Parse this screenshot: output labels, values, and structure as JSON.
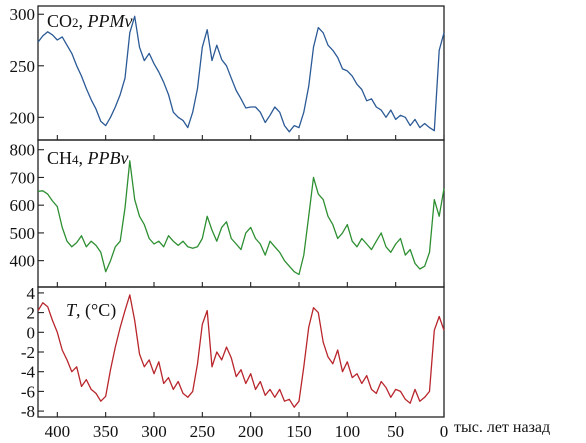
{
  "chart_data": [
    {
      "type": "line",
      "title_main": "CO",
      "title_sub": "2",
      "title_sep": ", ",
      "title_unit": "PPMv",
      "color": "#2b5a96",
      "xlim": [
        420,
        0
      ],
      "ylim": [
        178,
        308
      ],
      "yticks": [
        300,
        250,
        200
      ],
      "x": [
        420,
        415,
        410,
        405,
        400,
        395,
        390,
        385,
        380,
        375,
        370,
        365,
        360,
        355,
        350,
        345,
        340,
        335,
        330,
        325,
        320,
        315,
        310,
        305,
        300,
        295,
        290,
        285,
        280,
        275,
        270,
        265,
        260,
        255,
        250,
        245,
        240,
        235,
        230,
        225,
        220,
        215,
        210,
        205,
        200,
        195,
        190,
        185,
        180,
        175,
        170,
        165,
        160,
        155,
        150,
        145,
        140,
        135,
        130,
        125,
        120,
        115,
        110,
        105,
        100,
        95,
        90,
        85,
        80,
        75,
        70,
        65,
        60,
        55,
        50,
        45,
        40,
        35,
        30,
        25,
        20,
        15,
        10,
        5,
        0
      ],
      "y": [
        273,
        279,
        283,
        280,
        275,
        278,
        270,
        262,
        250,
        240,
        228,
        217,
        208,
        196,
        192,
        200,
        210,
        222,
        238,
        282,
        298,
        268,
        255,
        262,
        252,
        244,
        234,
        222,
        205,
        200,
        197,
        190,
        205,
        228,
        268,
        285,
        255,
        270,
        256,
        250,
        238,
        226,
        218,
        209,
        210,
        210,
        205,
        195,
        202,
        210,
        205,
        192,
        186,
        192,
        190,
        205,
        230,
        268,
        287,
        282,
        270,
        265,
        258,
        247,
        245,
        240,
        232,
        227,
        216,
        218,
        210,
        207,
        200,
        207,
        198,
        202,
        200,
        192,
        198,
        190,
        194,
        190,
        187,
        265,
        282
      ]
    },
    {
      "type": "line",
      "title_main": "CH",
      "title_sub": "4",
      "title_sep": ", ",
      "title_unit": "PPBv",
      "color": "#2e8f32",
      "xlim": [
        420,
        0
      ],
      "ylim": [
        305,
        835
      ],
      "yticks": [
        800,
        700,
        600,
        500,
        400
      ],
      "x": [
        420,
        415,
        410,
        405,
        400,
        395,
        390,
        385,
        380,
        375,
        370,
        365,
        360,
        355,
        350,
        345,
        340,
        335,
        330,
        325,
        320,
        315,
        310,
        305,
        300,
        295,
        290,
        285,
        280,
        275,
        270,
        265,
        260,
        255,
        250,
        245,
        240,
        235,
        230,
        225,
        220,
        215,
        210,
        205,
        200,
        195,
        190,
        185,
        180,
        175,
        170,
        165,
        160,
        155,
        150,
        145,
        140,
        135,
        130,
        125,
        120,
        115,
        110,
        105,
        100,
        95,
        90,
        85,
        80,
        75,
        70,
        65,
        60,
        55,
        50,
        45,
        40,
        35,
        30,
        25,
        20,
        15,
        10,
        5,
        0
      ],
      "y": [
        650,
        652,
        640,
        615,
        595,
        520,
        470,
        450,
        465,
        490,
        450,
        470,
        455,
        430,
        360,
        400,
        450,
        470,
        590,
        760,
        620,
        560,
        530,
        480,
        460,
        470,
        450,
        490,
        470,
        455,
        470,
        450,
        445,
        450,
        480,
        560,
        510,
        470,
        520,
        540,
        480,
        460,
        440,
        500,
        520,
        480,
        460,
        420,
        470,
        450,
        430,
        400,
        380,
        360,
        350,
        420,
        560,
        700,
        640,
        620,
        560,
        530,
        480,
        500,
        530,
        470,
        450,
        480,
        460,
        440,
        470,
        500,
        450,
        430,
        460,
        480,
        420,
        440,
        390,
        370,
        380,
        430,
        620,
        560,
        660
      ]
    },
    {
      "type": "line",
      "title_main": "T",
      "title_sep": ", ",
      "title_unit": "(°C)",
      "color": "#b8262c",
      "xlim": [
        420,
        0
      ],
      "ylim": [
        -8.6,
        4.6
      ],
      "yticks": [
        4,
        2,
        0,
        -2,
        -4,
        -6,
        -8
      ],
      "x": [
        420,
        415,
        410,
        405,
        400,
        395,
        390,
        385,
        380,
        375,
        370,
        365,
        360,
        355,
        350,
        345,
        340,
        335,
        330,
        325,
        320,
        315,
        310,
        305,
        300,
        295,
        290,
        285,
        280,
        275,
        270,
        265,
        260,
        255,
        250,
        245,
        240,
        235,
        230,
        225,
        220,
        215,
        210,
        205,
        200,
        195,
        190,
        185,
        180,
        175,
        170,
        165,
        160,
        155,
        150,
        145,
        140,
        135,
        130,
        125,
        120,
        115,
        110,
        105,
        100,
        95,
        90,
        85,
        80,
        75,
        70,
        65,
        60,
        55,
        50,
        45,
        40,
        35,
        30,
        25,
        20,
        15,
        10,
        5,
        0
      ],
      "y": [
        2.2,
        3.0,
        2.6,
        1.2,
        0.0,
        -1.8,
        -2.8,
        -4.0,
        -3.5,
        -5.5,
        -4.8,
        -5.8,
        -6.2,
        -7.0,
        -6.5,
        -3.8,
        -1.5,
        0.5,
        2.2,
        3.8,
        1.2,
        -2.2,
        -3.5,
        -2.8,
        -4.2,
        -3.0,
        -5.2,
        -4.6,
        -5.8,
        -5.0,
        -6.2,
        -6.6,
        -6.0,
        -3.2,
        0.8,
        2.2,
        -3.5,
        -2.0,
        -2.8,
        -1.5,
        -2.6,
        -4.5,
        -3.8,
        -5.2,
        -4.2,
        -5.8,
        -5.0,
        -6.4,
        -5.8,
        -6.6,
        -5.8,
        -7.0,
        -6.8,
        -7.6,
        -7.0,
        -3.5,
        0.5,
        2.5,
        2.0,
        -1.0,
        -2.5,
        -3.2,
        -1.8,
        -4.0,
        -3.0,
        -4.6,
        -4.2,
        -5.2,
        -4.4,
        -5.8,
        -6.2,
        -5.0,
        -5.6,
        -6.6,
        -5.8,
        -6.0,
        -6.8,
        -7.2,
        -5.8,
        -7.0,
        -6.6,
        -6.0,
        0.2,
        1.6,
        0.2
      ]
    }
  ],
  "x_axis": {
    "ticks": [
      400,
      350,
      300,
      250,
      200,
      150,
      100,
      50,
      0
    ],
    "unit_label": "тыс. лет назад"
  }
}
